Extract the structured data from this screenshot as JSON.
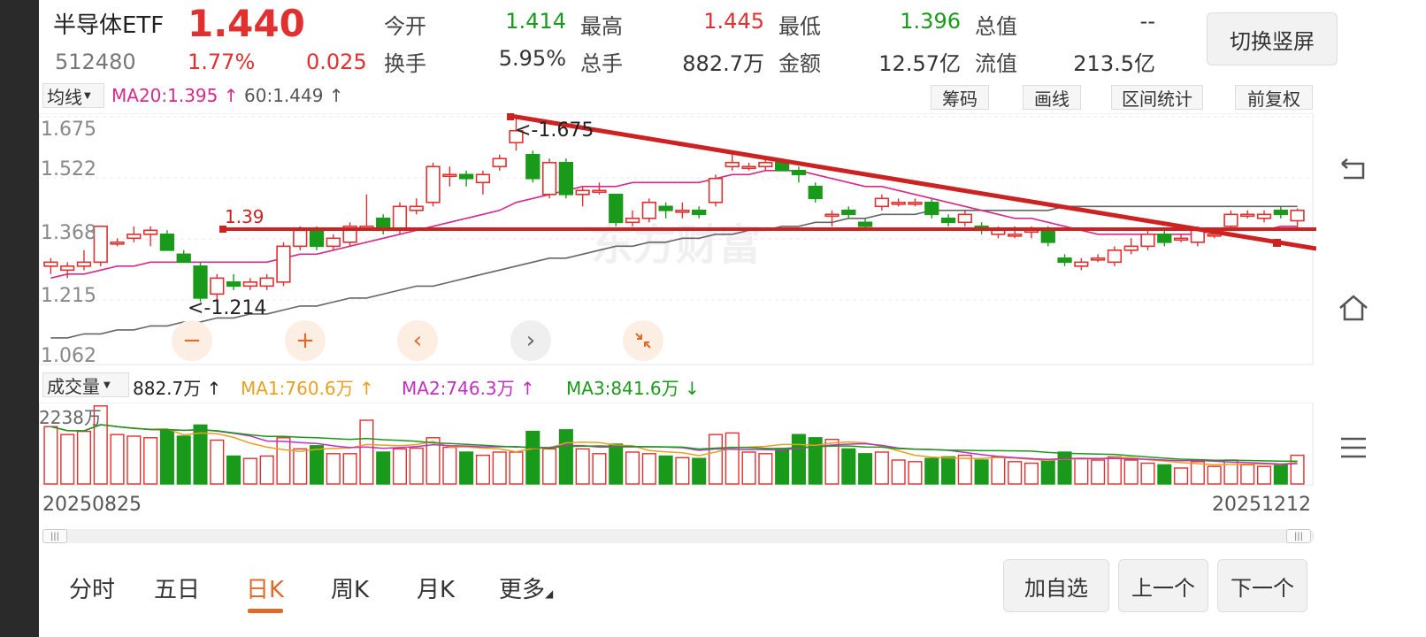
{
  "header": {
    "name": "半导体ETF",
    "price": "1.440",
    "code": "512480",
    "change_pct": "1.77%",
    "change": "0.025",
    "switch_label": "切换竖屏",
    "stats_row1": [
      {
        "label": "今开",
        "value": "1.414",
        "color": "green"
      },
      {
        "label": "最高",
        "value": "1.445",
        "color": "red"
      },
      {
        "label": "最低",
        "value": "1.396",
        "color": "green"
      },
      {
        "label": "总值",
        "value": "--",
        "color": "dark"
      }
    ],
    "stats_row2": [
      {
        "label": "换手",
        "value": "5.95%",
        "color": "dark"
      },
      {
        "label": "总手",
        "value": "882.7万",
        "color": "dark"
      },
      {
        "label": "金额",
        "value": "12.57亿",
        "color": "dark"
      },
      {
        "label": "流值",
        "value": "213.5亿",
        "color": "dark"
      }
    ]
  },
  "toolbar": {
    "ma_select": "均线",
    "ma20": "MA20:1.395 ↑",
    "ma60": "60:1.449 ↑",
    "chips": "筹码",
    "draw": "画线",
    "range": "区间统计",
    "adjust": "前复权"
  },
  "kline": {
    "y_ticks": [
      "1.675",
      "1.522",
      "1.368",
      "1.215",
      "1.062"
    ],
    "max_label": "<-1.675",
    "min_label": "<-1.214",
    "hline_label": "1.39",
    "watermark": "东方财富"
  },
  "volume": {
    "select": "成交量",
    "current": "882.7万 ↑",
    "ma1": "MA1:760.6万 ↑",
    "ma2": "MA2:746.3万 ↑",
    "ma3": "MA3:841.6万 ↓",
    "max_label": "2238万"
  },
  "dates": {
    "start": "20250825",
    "end": "20251212"
  },
  "tabs": [
    "分时",
    "五日",
    "日K",
    "周K",
    "月K",
    "更多"
  ],
  "active_tab": "日K",
  "buttons": {
    "add": "加自选",
    "prev": "上一个",
    "next": "下一个"
  },
  "colors": {
    "up": "#e03030",
    "down": "#1a9a1a",
    "accent": "#e06a2a",
    "ma20": "#d42a8a",
    "ma60": "#666666",
    "drawn_line": "#cc2222"
  },
  "chart_data": {
    "type": "candlestick",
    "x_range": [
      "20250825",
      "20251212"
    ],
    "ylim": [
      1.062,
      1.675
    ],
    "ohlc": [
      {
        "o": 1.3,
        "h": 1.32,
        "l": 1.28,
        "c": 1.31,
        "v": 0.72
      },
      {
        "o": 1.29,
        "h": 1.31,
        "l": 1.27,
        "c": 1.3,
        "v": 0.62
      },
      {
        "o": 1.3,
        "h": 1.34,
        "l": 1.29,
        "c": 1.31,
        "v": 0.66
      },
      {
        "o": 1.31,
        "h": 1.4,
        "l": 1.3,
        "c": 1.4,
        "v": 0.98
      },
      {
        "o": 1.36,
        "h": 1.37,
        "l": 1.35,
        "c": 1.36,
        "v": 0.62
      },
      {
        "o": 1.37,
        "h": 1.4,
        "l": 1.36,
        "c": 1.38,
        "v": 0.6
      },
      {
        "o": 1.38,
        "h": 1.4,
        "l": 1.35,
        "c": 1.39,
        "v": 0.58
      },
      {
        "o": 1.38,
        "h": 1.39,
        "l": 1.34,
        "c": 1.34,
        "v": 0.68
      },
      {
        "o": 1.33,
        "h": 1.34,
        "l": 1.31,
        "c": 1.31,
        "v": 0.6
      },
      {
        "o": 1.3,
        "h": 1.31,
        "l": 1.21,
        "c": 1.22,
        "v": 0.74
      },
      {
        "o": 1.23,
        "h": 1.28,
        "l": 1.21,
        "c": 1.27,
        "v": 0.55
      },
      {
        "o": 1.26,
        "h": 1.28,
        "l": 1.24,
        "c": 1.25,
        "v": 0.35
      },
      {
        "o": 1.25,
        "h": 1.27,
        "l": 1.24,
        "c": 1.26,
        "v": 0.32
      },
      {
        "o": 1.25,
        "h": 1.28,
        "l": 1.24,
        "c": 1.27,
        "v": 0.35
      },
      {
        "o": 1.26,
        "h": 1.36,
        "l": 1.25,
        "c": 1.35,
        "v": 0.58
      },
      {
        "o": 1.35,
        "h": 1.4,
        "l": 1.34,
        "c": 1.39,
        "v": 0.44
      },
      {
        "o": 1.39,
        "h": 1.4,
        "l": 1.34,
        "c": 1.35,
        "v": 0.48
      },
      {
        "o": 1.35,
        "h": 1.38,
        "l": 1.34,
        "c": 1.37,
        "v": 0.38
      },
      {
        "o": 1.36,
        "h": 1.41,
        "l": 1.35,
        "c": 1.4,
        "v": 0.38
      },
      {
        "o": 1.4,
        "h": 1.48,
        "l": 1.39,
        "c": 1.4,
        "v": 0.8
      },
      {
        "o": 1.42,
        "h": 1.43,
        "l": 1.38,
        "c": 1.39,
        "v": 0.4
      },
      {
        "o": 1.39,
        "h": 1.46,
        "l": 1.38,
        "c": 1.45,
        "v": 0.44
      },
      {
        "o": 1.44,
        "h": 1.47,
        "l": 1.43,
        "c": 1.45,
        "v": 0.45
      },
      {
        "o": 1.46,
        "h": 1.56,
        "l": 1.45,
        "c": 1.55,
        "v": 0.58
      },
      {
        "o": 1.53,
        "h": 1.55,
        "l": 1.5,
        "c": 1.53,
        "v": 0.46
      },
      {
        "o": 1.53,
        "h": 1.54,
        "l": 1.5,
        "c": 1.52,
        "v": 0.4
      },
      {
        "o": 1.51,
        "h": 1.54,
        "l": 1.48,
        "c": 1.53,
        "v": 0.36
      },
      {
        "o": 1.55,
        "h": 1.58,
        "l": 1.54,
        "c": 1.57,
        "v": 0.4
      },
      {
        "o": 1.61,
        "h": 1.675,
        "l": 1.59,
        "c": 1.64,
        "v": 0.4
      },
      {
        "o": 1.58,
        "h": 1.59,
        "l": 1.51,
        "c": 1.52,
        "v": 0.66
      },
      {
        "o": 1.48,
        "h": 1.57,
        "l": 1.47,
        "c": 1.56,
        "v": 0.44
      },
      {
        "o": 1.56,
        "h": 1.57,
        "l": 1.47,
        "c": 1.48,
        "v": 0.68
      },
      {
        "o": 1.48,
        "h": 1.5,
        "l": 1.45,
        "c": 1.49,
        "v": 0.44
      },
      {
        "o": 1.49,
        "h": 1.51,
        "l": 1.48,
        "c": 1.49,
        "v": 0.38
      },
      {
        "o": 1.48,
        "h": 1.48,
        "l": 1.4,
        "c": 1.41,
        "v": 0.5
      },
      {
        "o": 1.41,
        "h": 1.44,
        "l": 1.4,
        "c": 1.42,
        "v": 0.4
      },
      {
        "o": 1.42,
        "h": 1.47,
        "l": 1.41,
        "c": 1.46,
        "v": 0.38
      },
      {
        "o": 1.45,
        "h": 1.46,
        "l": 1.42,
        "c": 1.44,
        "v": 0.35
      },
      {
        "o": 1.44,
        "h": 1.46,
        "l": 1.42,
        "c": 1.44,
        "v": 0.33
      },
      {
        "o": 1.44,
        "h": 1.45,
        "l": 1.42,
        "c": 1.43,
        "v": 0.32
      },
      {
        "o": 1.46,
        "h": 1.53,
        "l": 1.45,
        "c": 1.52,
        "v": 0.62
      },
      {
        "o": 1.55,
        "h": 1.58,
        "l": 1.54,
        "c": 1.56,
        "v": 0.64
      },
      {
        "o": 1.55,
        "h": 1.56,
        "l": 1.54,
        "c": 1.55,
        "v": 0.4
      },
      {
        "o": 1.55,
        "h": 1.57,
        "l": 1.54,
        "c": 1.56,
        "v": 0.38
      },
      {
        "o": 1.56,
        "h": 1.57,
        "l": 1.54,
        "c": 1.54,
        "v": 0.44
      },
      {
        "o": 1.54,
        "h": 1.55,
        "l": 1.51,
        "c": 1.53,
        "v": 0.62
      },
      {
        "o": 1.5,
        "h": 1.51,
        "l": 1.46,
        "c": 1.47,
        "v": 0.58
      },
      {
        "o": 1.43,
        "h": 1.44,
        "l": 1.4,
        "c": 1.43,
        "v": 0.56
      },
      {
        "o": 1.44,
        "h": 1.45,
        "l": 1.42,
        "c": 1.43,
        "v": 0.44
      },
      {
        "o": 1.41,
        "h": 1.42,
        "l": 1.39,
        "c": 1.4,
        "v": 0.38
      },
      {
        "o": 1.45,
        "h": 1.48,
        "l": 1.44,
        "c": 1.47,
        "v": 0.4
      },
      {
        "o": 1.46,
        "h": 1.47,
        "l": 1.45,
        "c": 1.46,
        "v": 0.3
      },
      {
        "o": 1.46,
        "h": 1.47,
        "l": 1.45,
        "c": 1.46,
        "v": 0.28
      },
      {
        "o": 1.46,
        "h": 1.47,
        "l": 1.42,
        "c": 1.43,
        "v": 0.32
      },
      {
        "o": 1.42,
        "h": 1.43,
        "l": 1.4,
        "c": 1.41,
        "v": 0.34
      },
      {
        "o": 1.41,
        "h": 1.44,
        "l": 1.4,
        "c": 1.43,
        "v": 0.36
      },
      {
        "o": 1.4,
        "h": 1.41,
        "l": 1.38,
        "c": 1.39,
        "v": 0.3
      },
      {
        "o": 1.38,
        "h": 1.4,
        "l": 1.37,
        "c": 1.39,
        "v": 0.34
      },
      {
        "o": 1.38,
        "h": 1.4,
        "l": 1.37,
        "c": 1.38,
        "v": 0.28
      },
      {
        "o": 1.39,
        "h": 1.4,
        "l": 1.37,
        "c": 1.39,
        "v": 0.26
      },
      {
        "o": 1.39,
        "h": 1.4,
        "l": 1.35,
        "c": 1.36,
        "v": 0.3
      },
      {
        "o": 1.32,
        "h": 1.33,
        "l": 1.3,
        "c": 1.31,
        "v": 0.4
      },
      {
        "o": 1.3,
        "h": 1.32,
        "l": 1.29,
        "c": 1.31,
        "v": 0.32
      },
      {
        "o": 1.32,
        "h": 1.33,
        "l": 1.31,
        "c": 1.32,
        "v": 0.3
      },
      {
        "o": 1.31,
        "h": 1.35,
        "l": 1.3,
        "c": 1.34,
        "v": 0.34
      },
      {
        "o": 1.34,
        "h": 1.37,
        "l": 1.33,
        "c": 1.35,
        "v": 0.3
      },
      {
        "o": 1.35,
        "h": 1.39,
        "l": 1.34,
        "c": 1.38,
        "v": 0.26
      },
      {
        "o": 1.38,
        "h": 1.39,
        "l": 1.35,
        "c": 1.36,
        "v": 0.24
      },
      {
        "o": 1.37,
        "h": 1.38,
        "l": 1.36,
        "c": 1.37,
        "v": 0.2
      },
      {
        "o": 1.36,
        "h": 1.4,
        "l": 1.35,
        "c": 1.39,
        "v": 0.28
      },
      {
        "o": 1.38,
        "h": 1.39,
        "l": 1.37,
        "c": 1.38,
        "v": 0.22
      },
      {
        "o": 1.4,
        "h": 1.44,
        "l": 1.39,
        "c": 1.43,
        "v": 0.3
      },
      {
        "o": 1.43,
        "h": 1.44,
        "l": 1.42,
        "c": 1.43,
        "v": 0.24
      },
      {
        "o": 1.42,
        "h": 1.44,
        "l": 1.41,
        "c": 1.43,
        "v": 0.22
      },
      {
        "o": 1.44,
        "h": 1.45,
        "l": 1.42,
        "c": 1.43,
        "v": 0.24
      },
      {
        "o": 1.414,
        "h": 1.445,
        "l": 1.396,
        "c": 1.44,
        "v": 0.36
      }
    ],
    "ma20": [
      1.27,
      1.28,
      1.28,
      1.29,
      1.3,
      1.3,
      1.31,
      1.31,
      1.31,
      1.31,
      1.31,
      1.31,
      1.31,
      1.31,
      1.32,
      1.33,
      1.33,
      1.34,
      1.35,
      1.36,
      1.37,
      1.38,
      1.39,
      1.4,
      1.41,
      1.42,
      1.43,
      1.44,
      1.46,
      1.47,
      1.48,
      1.49,
      1.5,
      1.5,
      1.5,
      1.51,
      1.51,
      1.51,
      1.51,
      1.51,
      1.52,
      1.53,
      1.53,
      1.54,
      1.54,
      1.54,
      1.53,
      1.52,
      1.51,
      1.5,
      1.5,
      1.49,
      1.48,
      1.47,
      1.46,
      1.45,
      1.44,
      1.43,
      1.42,
      1.42,
      1.41,
      1.4,
      1.39,
      1.38,
      1.38,
      1.38,
      1.38,
      1.38,
      1.38,
      1.38,
      1.39,
      1.39,
      1.39,
      1.39,
      1.4,
      1.4
    ],
    "ma60": [
      1.12,
      1.12,
      1.13,
      1.13,
      1.14,
      1.14,
      1.15,
      1.15,
      1.16,
      1.16,
      1.17,
      1.17,
      1.18,
      1.18,
      1.19,
      1.2,
      1.2,
      1.21,
      1.22,
      1.22,
      1.23,
      1.24,
      1.25,
      1.25,
      1.26,
      1.27,
      1.28,
      1.29,
      1.3,
      1.31,
      1.32,
      1.32,
      1.33,
      1.34,
      1.35,
      1.35,
      1.36,
      1.36,
      1.37,
      1.37,
      1.38,
      1.38,
      1.39,
      1.39,
      1.4,
      1.4,
      1.41,
      1.41,
      1.42,
      1.42,
      1.43,
      1.43,
      1.43,
      1.44,
      1.44,
      1.44,
      1.44,
      1.44,
      1.44,
      1.44,
      1.44,
      1.45,
      1.45,
      1.45,
      1.45,
      1.45,
      1.45,
      1.45,
      1.45,
      1.45,
      1.45,
      1.45,
      1.45,
      1.45,
      1.45,
      1.45
    ]
  }
}
